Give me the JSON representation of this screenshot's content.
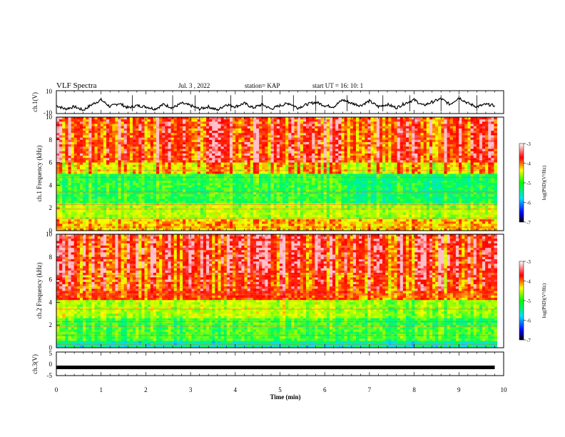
{
  "header": {
    "title": "VLF Spectra",
    "date": "Jul. 3 , 2022",
    "station": "station= KAP",
    "start_ut": "start UT = 16: 10: 1"
  },
  "chart_data": [
    {
      "type": "line",
      "name": "ch1-waveform",
      "ylabel": "ch.1(V)",
      "ylim": [
        -10,
        10
      ],
      "yticks": [
        "10",
        "-10"
      ],
      "xlim": [
        0,
        10
      ],
      "x": [
        0,
        0.2,
        0.4,
        0.6,
        0.8,
        1.0,
        1.2,
        1.4,
        1.6,
        1.8,
        2.0,
        2.2,
        2.4,
        2.6,
        2.8,
        3.0,
        3.2,
        3.4,
        3.6,
        3.8,
        4.0,
        4.2,
        4.4,
        4.6,
        4.8,
        5.0,
        5.2,
        5.4,
        5.6,
        5.8,
        6.0,
        6.2,
        6.4,
        6.6,
        6.8,
        7.0,
        7.2,
        7.4,
        7.6,
        7.8,
        8.0,
        8.2,
        8.4,
        8.6,
        8.8,
        9.0,
        9.2,
        9.4,
        9.6,
        9.8
      ],
      "y": [
        -3,
        -6,
        -4,
        -7,
        -2,
        2,
        -4,
        -1,
        -5,
        -3,
        -4,
        -6,
        -2,
        -5,
        -1,
        -3,
        -6,
        -4,
        -7,
        -2,
        -4,
        -1,
        -5,
        -2,
        -6,
        -3,
        -1,
        -5,
        -2,
        0,
        -3,
        -4,
        2,
        -1,
        -3,
        1,
        -4,
        -2,
        -5,
        -1,
        2,
        -3,
        0,
        3,
        -2,
        4,
        -1,
        -4,
        -2,
        -3
      ]
    },
    {
      "type": "heatmap",
      "name": "ch1-spectrogram",
      "ylabel": "ch.1 Frequency (kHz)",
      "ylim": [
        0,
        10
      ],
      "yticks": [
        "0",
        "2",
        "4",
        "6",
        "8",
        "10"
      ],
      "xlim": [
        0,
        10
      ],
      "colorbar_label": "log(PSD)(V²/Hz)",
      "colorbar_ticks": [
        "-3",
        "-4",
        "-5",
        "-6",
        "-7"
      ]
    },
    {
      "type": "heatmap",
      "name": "ch2-spectrogram",
      "ylabel": "ch.2 Frequency (kHz)",
      "ylim": [
        0,
        10
      ],
      "yticks": [
        "0",
        "2",
        "4",
        "6",
        "8",
        "10"
      ],
      "xlim": [
        0,
        10
      ],
      "colorbar_label": "log(PSD)(V²/Hz)",
      "colorbar_ticks": [
        "-3",
        "-4",
        "-5",
        "-6",
        "-7"
      ]
    },
    {
      "type": "line",
      "name": "ch3-waveform",
      "ylabel": "ch.3(V)",
      "ylim": [
        -5,
        5
      ],
      "yticks": [
        "5",
        "0",
        "-5"
      ],
      "xlim": [
        0,
        10
      ],
      "x": [
        0,
        9.8
      ],
      "y": [
        -1.5,
        -1.5
      ],
      "xlabel": "Time (min)",
      "xticks": [
        "0",
        "1",
        "2",
        "3",
        "4",
        "5",
        "6",
        "7",
        "8",
        "9",
        "10"
      ]
    }
  ]
}
